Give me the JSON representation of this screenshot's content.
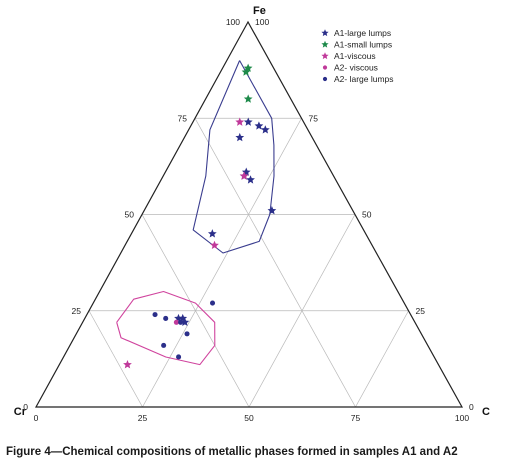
{
  "caption": "Figure 4—Chemical compositions of metallic phases formed in samples A1 and A2",
  "chart_data": {
    "type": "ternary-scatter",
    "title": "",
    "corners": {
      "top": "Fe",
      "left": "Cr",
      "right": "C"
    },
    "ticks": {
      "left_edge": [
        "100",
        "75",
        "50",
        "25",
        "0"
      ],
      "right_edge": [
        "100",
        "75",
        "50",
        "25",
        "0"
      ],
      "bottom_edge": [
        "0",
        "25",
        "50",
        "75",
        "100"
      ]
    },
    "grid_step": 25,
    "grid": true,
    "legend_position": "top-right",
    "series": [
      {
        "name": "A1-large lumps",
        "marker": "star",
        "color": "#2b2f8a",
        "points": [
          [
            74,
            13,
            13
          ],
          [
            73,
            11,
            16
          ],
          [
            72,
            10,
            18
          ],
          [
            70,
            17,
            13
          ],
          [
            61,
            20,
            19
          ],
          [
            60,
            21,
            19
          ],
          [
            59,
            20,
            21
          ],
          [
            51,
            19,
            30
          ],
          [
            45,
            36,
            19
          ],
          [
            23,
            54,
            23
          ],
          [
            23,
            55,
            22
          ],
          [
            22,
            54,
            24
          ]
        ]
      },
      {
        "name": "A1-small lumps",
        "marker": "star",
        "color": "#1e8a4a",
        "points": [
          [
            88,
            6,
            6
          ],
          [
            87,
            7,
            6
          ],
          [
            80,
            10,
            10
          ]
        ]
      },
      {
        "name": "A1-viscous",
        "marker": "star",
        "color": "#c0399a",
        "points": [
          [
            74,
            15,
            11
          ],
          [
            60,
            21,
            19
          ],
          [
            42,
            37,
            21
          ],
          [
            11,
            73,
            16
          ]
        ]
      },
      {
        "name": "A2- viscous",
        "marker": "dot",
        "color": "#c0399a",
        "points": [
          [
            22,
            56,
            22
          ]
        ]
      },
      {
        "name": "A2- large lumps",
        "marker": "dot",
        "color": "#2b2f8a",
        "points": [
          [
            24,
            60,
            16
          ],
          [
            23,
            58,
            19
          ],
          [
            22,
            55,
            23
          ],
          [
            19,
            55,
            26
          ],
          [
            27,
            45,
            28
          ],
          [
            16,
            62,
            22
          ],
          [
            13,
            60,
            27
          ]
        ]
      }
    ],
    "outlines": [
      {
        "color": "#3a3d8f",
        "points": [
          [
            90,
            7,
            3
          ],
          [
            75,
            7,
            18
          ],
          [
            68,
            10,
            22
          ],
          [
            60,
            14,
            26
          ],
          [
            50,
            20,
            30
          ],
          [
            43,
            26,
            31
          ],
          [
            40,
            36,
            24
          ],
          [
            46,
            40,
            14
          ],
          [
            60,
            30,
            10
          ],
          [
            72,
            23,
            5
          ],
          [
            90,
            7,
            3
          ]
        ]
      },
      {
        "color": "#d0449e",
        "points": [
          [
            22,
            70,
            8
          ],
          [
            28,
            63,
            9
          ],
          [
            30,
            55,
            15
          ],
          [
            27,
            49,
            24
          ],
          [
            22,
            47,
            31
          ],
          [
            16,
            50,
            34
          ],
          [
            11,
            56,
            33
          ],
          [
            13,
            63,
            24
          ],
          [
            18,
            71,
            11
          ],
          [
            22,
            70,
            8
          ]
        ]
      }
    ]
  }
}
